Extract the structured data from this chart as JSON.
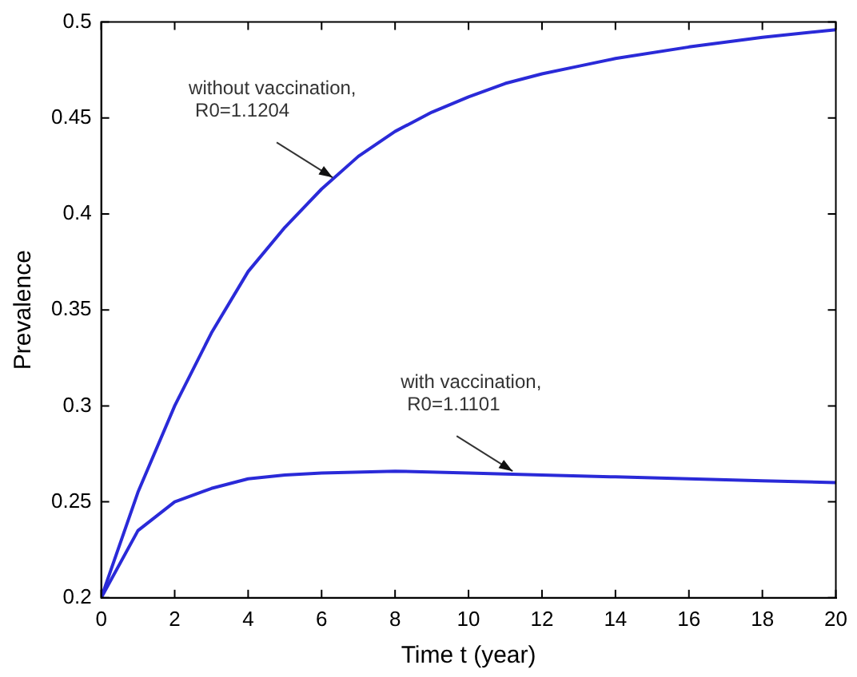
{
  "chart_data": {
    "type": "line",
    "xlabel": "Time t (year)",
    "ylabel": "Prevalence",
    "xlim": [
      0,
      20
    ],
    "ylim": [
      0.2,
      0.5
    ],
    "xticks": [
      0,
      2,
      4,
      6,
      8,
      10,
      12,
      14,
      16,
      18,
      20
    ],
    "yticks": [
      0.2,
      0.25,
      0.3,
      0.35,
      0.4,
      0.45,
      0.5
    ],
    "grid": false,
    "legend": false,
    "marker": "none",
    "line_style": "solid",
    "series": [
      {
        "color": "#2a2ad8",
        "x": [
          0,
          1,
          2,
          3,
          4,
          5,
          6,
          7,
          8,
          9,
          10,
          11,
          12,
          13,
          14,
          16,
          18,
          20
        ],
        "values": [
          0.2,
          0.255,
          0.3,
          0.338,
          0.37,
          0.393,
          0.413,
          0.43,
          0.443,
          0.453,
          0.461,
          0.468,
          0.473,
          0.477,
          0.481,
          0.487,
          0.492,
          0.496
        ]
      },
      {
        "color": "#2a2ad8",
        "x": [
          0,
          1,
          2,
          3,
          4,
          5,
          6,
          8,
          10,
          12,
          14,
          16,
          18,
          20
        ],
        "values": [
          0.2,
          0.235,
          0.25,
          0.257,
          0.262,
          0.264,
          0.265,
          0.266,
          0.265,
          0.264,
          0.263,
          0.262,
          0.261,
          0.26
        ]
      }
    ],
    "annotations": [
      {
        "text": "without vaccination,\nR0=1.1204",
        "x": 6.3,
        "y": 0.419
      },
      {
        "text": "with vaccination,\nR0=1.1101",
        "x": 11.2,
        "y": 0.266
      }
    ]
  }
}
